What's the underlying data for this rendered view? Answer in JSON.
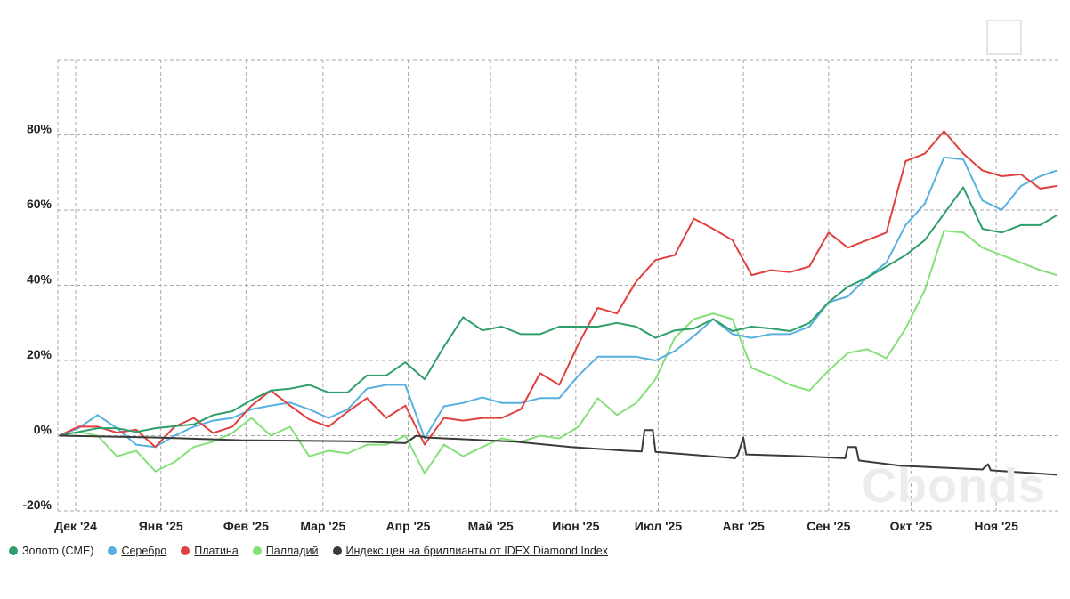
{
  "chart_data": {
    "type": "line",
    "title": "",
    "xlabel": "",
    "ylabel": "",
    "x_unit": "days since 2024-12-01",
    "ylim": [
      -20,
      100
    ],
    "xlim": [
      -6.5,
      358
    ],
    "grid": true,
    "y_ticks": [
      {
        "value": 80,
        "label": "80%"
      },
      {
        "value": 60,
        "label": "60%"
      },
      {
        "value": 40,
        "label": "40%"
      },
      {
        "value": 20,
        "label": "20%"
      },
      {
        "value": 0,
        "label": "0%"
      },
      {
        "value": -20,
        "label": "-20%"
      }
    ],
    "x_ticks": [
      {
        "value": 0,
        "label": "Дек '24"
      },
      {
        "value": 31,
        "label": "Янв '25"
      },
      {
        "value": 62,
        "label": "Фев '25"
      },
      {
        "value": 90,
        "label": "Мар '25"
      },
      {
        "value": 121,
        "label": "Апр '25"
      },
      {
        "value": 151,
        "label": "Май '25"
      },
      {
        "value": 182,
        "label": "Июн '25"
      },
      {
        "value": 212,
        "label": "Июл '25"
      },
      {
        "value": 243,
        "label": "Авг '25"
      },
      {
        "value": 274,
        "label": "Сен '25"
      },
      {
        "value": 304,
        "label": "Окт '25"
      },
      {
        "value": 335,
        "label": "Ноя '25"
      }
    ],
    "legend_position": "bottom-left",
    "x": [
      -6,
      1,
      8,
      15,
      22,
      29,
      36,
      43,
      50,
      57,
      64,
      71,
      78,
      85,
      92,
      99,
      106,
      113,
      120,
      127,
      134,
      141,
      148,
      155,
      162,
      169,
      176,
      183,
      190,
      197,
      204,
      211,
      218,
      225,
      232,
      239,
      246,
      253,
      260,
      267,
      274,
      281,
      288,
      295,
      302,
      309,
      316,
      323,
      330,
      337,
      344,
      351,
      357
    ],
    "series": [
      {
        "name": "Золото (CME)",
        "color": "#2e9e6a",
        "underline": false,
        "values": [
          0,
          1,
          2,
          2,
          1,
          2,
          2.5,
          3,
          5.5,
          6.5,
          9.5,
          12,
          12.5,
          13.5,
          11.5,
          11.5,
          16,
          16,
          19.5,
          15,
          23.7,
          31.5,
          28,
          29,
          27,
          27,
          29,
          29,
          29,
          30,
          29,
          26,
          28,
          28.5,
          31,
          27.8,
          29,
          28.5,
          27.8,
          30,
          35.5,
          39.6,
          42,
          45,
          48,
          52,
          59,
          66,
          55,
          54,
          56,
          56,
          58.6
        ]
      },
      {
        "name": "Серебро",
        "color": "#56b0e0",
        "underline": true,
        "values": [
          0,
          2,
          5.5,
          2,
          -2.4,
          -3,
          0,
          2.4,
          4,
          4.7,
          7,
          8,
          8.8,
          7,
          4.7,
          7,
          12.5,
          13.5,
          13.5,
          -0.7,
          7.8,
          8.7,
          10.2,
          8.7,
          8.7,
          10,
          10,
          16,
          21,
          21,
          21,
          20,
          22.5,
          26.5,
          31,
          27,
          26,
          27,
          27,
          29,
          35.5,
          37,
          42,
          46,
          56,
          61.7,
          74,
          73.5,
          62.5,
          60,
          66.4,
          69,
          70.5
        ]
      },
      {
        "name": "Платина",
        "color": "#e0413f",
        "underline": true,
        "values": [
          0,
          2.4,
          2.4,
          0.8,
          1.6,
          -3,
          2.4,
          4.7,
          0.7,
          2.4,
          8,
          12,
          8,
          4.3,
          2.4,
          6.4,
          10,
          4.7,
          8,
          -2.4,
          4.7,
          4,
          4.7,
          4.7,
          7,
          16.6,
          13.5,
          24.4,
          34,
          32.5,
          41,
          46.7,
          48,
          57.7,
          55,
          52,
          42.7,
          44,
          43.5,
          45,
          54,
          50,
          52,
          54,
          73,
          75,
          81,
          75,
          70.5,
          69,
          69.5,
          65.7,
          66.4
        ]
      },
      {
        "name": "Палладий",
        "color": "#86e07a",
        "underline": true,
        "values": [
          0,
          1,
          0,
          -5.5,
          -4,
          -9.5,
          -7,
          -3,
          -1.6,
          0.7,
          4.7,
          0,
          2.4,
          -5.5,
          -4,
          -4.7,
          -2.4,
          -2.4,
          0,
          -10,
          -2.4,
          -5.5,
          -3,
          -0.7,
          -1.6,
          0,
          -0.7,
          2.4,
          10,
          5.5,
          8.7,
          15,
          26,
          31,
          32.5,
          31,
          18,
          16,
          13.5,
          12,
          17.3,
          22,
          23,
          20.6,
          28.5,
          38.7,
          54.5,
          54,
          50,
          48,
          46,
          44,
          42.7
        ]
      },
      {
        "name": "Индекс цен на бриллианты от IDEX Diamond Index",
        "color": "#3a3a3a",
        "underline": true,
        "points": [
          [
            -6,
            0
          ],
          [
            30,
            -0.5
          ],
          [
            60,
            -1.2
          ],
          [
            100,
            -1.5
          ],
          [
            120,
            -2
          ],
          [
            124,
            0
          ],
          [
            128,
            -0.5
          ],
          [
            160,
            -1.6
          ],
          [
            180,
            -3
          ],
          [
            200,
            -4
          ],
          [
            206,
            -4.2
          ],
          [
            207,
            1.5
          ],
          [
            210,
            1.5
          ],
          [
            211,
            -4.3
          ],
          [
            240,
            -6
          ],
          [
            241,
            -5
          ],
          [
            243,
            -0.5
          ],
          [
            244,
            -5
          ],
          [
            265,
            -5.5
          ],
          [
            280,
            -6
          ],
          [
            281,
            -3
          ],
          [
            284,
            -3
          ],
          [
            285,
            -6.6
          ],
          [
            300,
            -8
          ],
          [
            330,
            -9
          ],
          [
            332,
            -7.6
          ],
          [
            333,
            -9.2
          ],
          [
            357,
            -10.4
          ]
        ]
      }
    ]
  },
  "watermark": "Cbonds"
}
